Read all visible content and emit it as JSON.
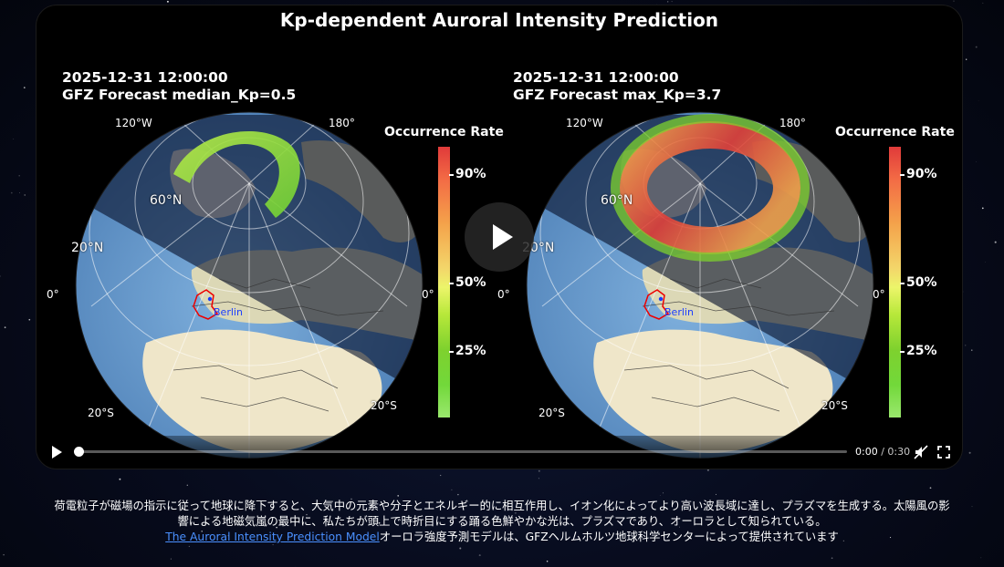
{
  "video": {
    "title": "Kp-dependent Auroral Intensity Prediction",
    "panels": [
      {
        "timestamp": "2025-12-31 12:00:00",
        "forecast": "GFZ Forecast median_Kp=0.5",
        "kp": 0.5,
        "colorbar_title": "Occurrence Rate",
        "colorbar_ticks": [
          "90%",
          "50%",
          "25%"
        ],
        "city": "Berlin",
        "labels": {
          "lon_120w": "120°W",
          "lon_180": "180°",
          "lat_60n": "60°N",
          "lat_20n": "20°N",
          "lat_0_left": "0°",
          "lat_0_right": "0°",
          "lat_20s_left": "20°S",
          "lat_20s_right": "20°S"
        }
      },
      {
        "timestamp": "2025-12-31 12:00:00",
        "forecast": "GFZ Forecast max_Kp=3.7",
        "kp": 3.7,
        "colorbar_title": "Occurrence Rate",
        "colorbar_ticks": [
          "90%",
          "50%",
          "25%"
        ],
        "city": "Berlin",
        "labels": {
          "lon_120w": "120°W",
          "lon_180": "180°",
          "lat_60n": "60°N",
          "lat_20n": "20°N",
          "lat_0_left": "0°",
          "lat_0_right": "0°",
          "lat_20s_left": "20°S",
          "lat_20s_right": "20°S"
        }
      }
    ]
  },
  "player": {
    "current_time": "0:00",
    "separator": " / ",
    "duration": "0:30",
    "progress": 0,
    "icons": {
      "play": "play-icon",
      "big_play": "play-overlay-icon",
      "mute": "volume-muted-icon",
      "fullscreen": "fullscreen-icon"
    }
  },
  "caption": {
    "line1": "荷電粒子が磁場の指示に従って地球に降下すると、大気中の元素や分子とエネルギー的に相互作用し、イオン化によってより高い波長域に達し、プラズマを生成する。太陽風の影",
    "line2": "響による地磁気嵐の最中に、私たちが頭上で時折目にする踊る色鮮やかな光は、プラズマであり、オーロラとして知られている。",
    "link_text": "The Auroral Intensity Prediction Model",
    "after_link": "オーロラ強度予測モデルは、GFZヘルムホルツ地球科学センターによって提供されています"
  },
  "colors": {
    "link": "#4a90ff",
    "ocean": "#5b8fc8",
    "night_ocean": "#263f5e",
    "land": "#ece4c4",
    "night_land": "#6e7050",
    "aurora_low": "#7ed12e",
    "aurora_high": "#e03a3a"
  }
}
